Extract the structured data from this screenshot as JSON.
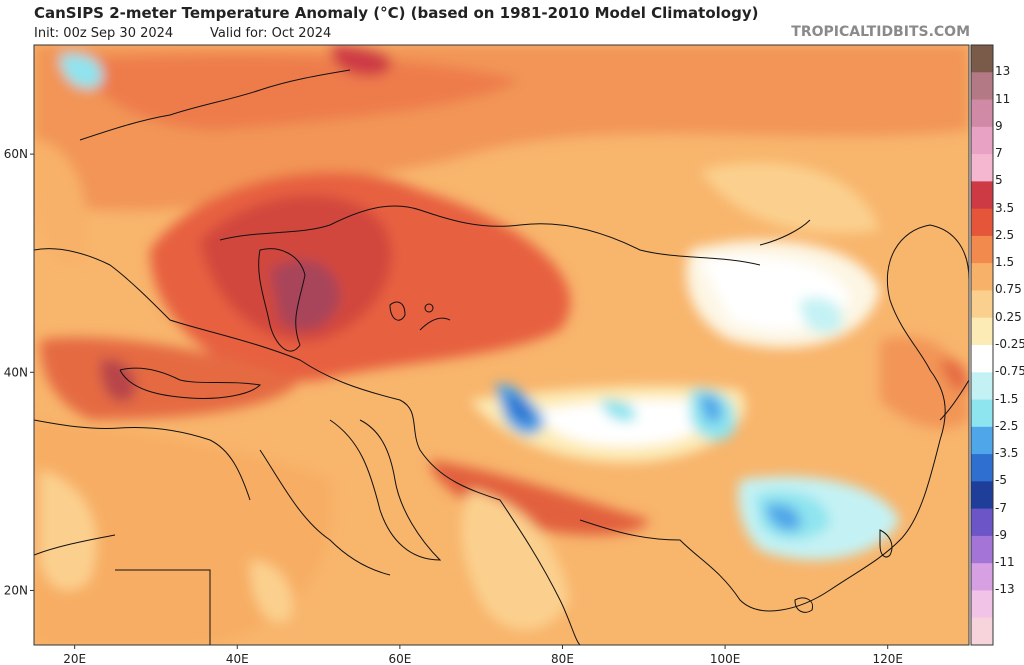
{
  "header": {
    "title": "CanSIPS 2-meter Temperature Anomaly (°C) (based on 1981-2010 Model Climatology)",
    "init": "Init: 00z Sep 30 2024",
    "valid": "Valid for: Oct 2024",
    "source": "TROPICALTIDBITS.COM"
  },
  "map": {
    "region": "Europe / Middle East / Asia",
    "lat_range": [
      15,
      70
    ],
    "lon_range": [
      15,
      130
    ],
    "lat_labels": [
      "60N",
      "40N",
      "20N"
    ],
    "lat_values": [
      60,
      40,
      20
    ],
    "lon_labels": [
      "20E",
      "40E",
      "60E",
      "80E",
      "100E",
      "120E"
    ],
    "lon_values": [
      20,
      40,
      60,
      80,
      100,
      120
    ]
  },
  "colorbar": {
    "labels": [
      "13",
      "11",
      "9",
      "7",
      "5",
      "3.5",
      "2.5",
      "1.5",
      "0.75",
      "0.25",
      "-0.25",
      "-0.75",
      "-1.5",
      "-2.5",
      "-3.5",
      "-5",
      "-7",
      "-9",
      "-11",
      "-13"
    ],
    "colors": [
      "#7a5a48",
      "#b37a86",
      "#d08aa6",
      "#e8a3c4",
      "#f5b7cf",
      "#ce3a44",
      "#e4553a",
      "#f28a4e",
      "#f8b168",
      "#fbd08e",
      "#fdebb6",
      "#ffffff",
      "#c4f2f4",
      "#8ee4ef",
      "#4fa6e8",
      "#2e6fcf",
      "#1f3e9a",
      "#6c55c6",
      "#a475d6",
      "#d7a0e2",
      "#f1c3e6",
      "#f7d4dc"
    ]
  }
}
